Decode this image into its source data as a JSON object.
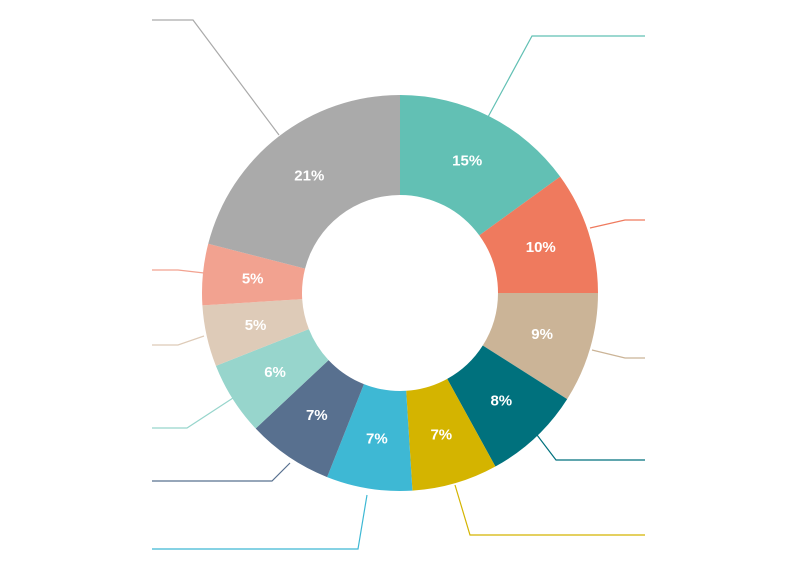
{
  "chart_data": {
    "type": "pie",
    "donut": true,
    "title": "",
    "legend": "none",
    "start": "12-o-clock",
    "direction": "clockwise",
    "slices": [
      {
        "label": "15%",
        "value": 15,
        "color": "#62C0B4"
      },
      {
        "label": "10%",
        "value": 10,
        "color": "#EF7A5E"
      },
      {
        "label": "9%",
        "value": 9,
        "color": "#CBB497"
      },
      {
        "label": "8%",
        "value": 8,
        "color": "#00717D"
      },
      {
        "label": "7%",
        "value": 7,
        "color": "#D4B400"
      },
      {
        "label": "7%",
        "value": 7,
        "color": "#3EB8D4"
      },
      {
        "label": "7%",
        "value": 7,
        "color": "#58708F"
      },
      {
        "label": "6%",
        "value": 6,
        "color": "#97D5CC"
      },
      {
        "label": "5%",
        "value": 5,
        "color": "#DECBB8"
      },
      {
        "label": "5%",
        "value": 5,
        "color": "#F2A290"
      },
      {
        "label": "21%",
        "value": 21,
        "color": "#AAAAAA"
      }
    ]
  }
}
